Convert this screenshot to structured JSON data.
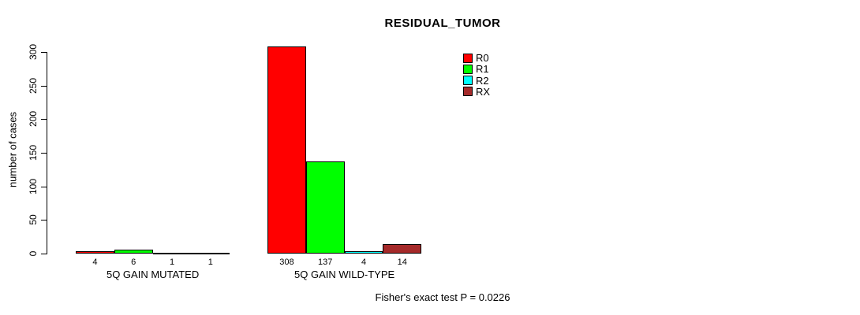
{
  "chart_data": {
    "type": "bar",
    "title": "RESIDUAL_TUMOR",
    "ylabel": "number of cases",
    "xlabel": "",
    "ylim": [
      0,
      300
    ],
    "yticks": [
      0,
      50,
      100,
      150,
      200,
      250,
      300
    ],
    "grid": false,
    "categories": [
      "5Q GAIN MUTATED",
      "5Q GAIN WILD-TYPE"
    ],
    "series": [
      {
        "name": "R0",
        "color": "#ff0000",
        "values": [
          4,
          308
        ]
      },
      {
        "name": "R1",
        "color": "#00ff00",
        "values": [
          6,
          137
        ]
      },
      {
        "name": "R2",
        "color": "#00ffff",
        "values": [
          1,
          4
        ]
      },
      {
        "name": "RX",
        "color": "#a52a2a",
        "values": [
          1,
          14
        ]
      }
    ],
    "bar_value_labels_shown": true,
    "legend": {
      "position": "top-right",
      "entries": [
        "R0",
        "R1",
        "R2",
        "RX"
      ]
    },
    "annotation": "Fisher's exact test P = 0.0226"
  }
}
